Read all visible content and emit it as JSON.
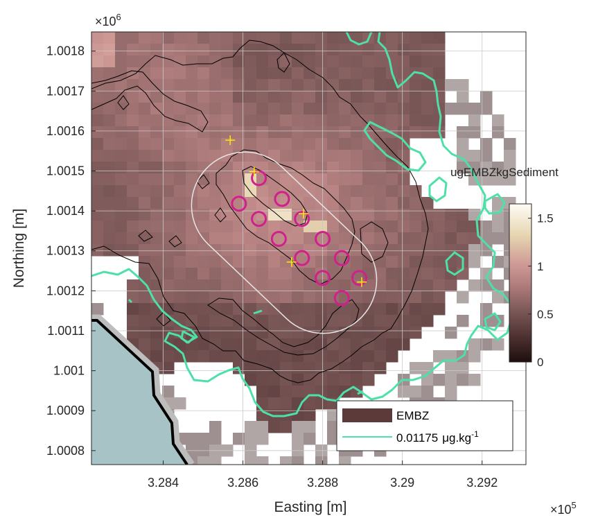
{
  "chart_data": {
    "type": "heatmap",
    "title": "",
    "xlabel": "Easting [m]",
    "ylabel": "Northing [m]",
    "x_exponent_label": "×10",
    "x_exponent_power": "5",
    "y_exponent_label": "×10",
    "y_exponent_power": "6",
    "xlim": [
      328220,
      329310
    ],
    "ylim": [
      1000745,
      1001828
    ],
    "x_ticks": [
      328400,
      328600,
      328800,
      329000,
      329200
    ],
    "x_tick_labels": [
      "3.284",
      "3.286",
      "3.288",
      "3.29",
      "3.292"
    ],
    "y_ticks": [
      1000780,
      1000880,
      1000980,
      1001080,
      1001180,
      1001280,
      1001380,
      1001480,
      1001580,
      1001680,
      1001780
    ],
    "y_tick_labels": [
      "1.0008",
      "1.0009",
      "1.001",
      "1.0011",
      "1.0012",
      "1.0013",
      "1.0014",
      "1.0015",
      "1.0016",
      "1.0017",
      "1.0018"
    ],
    "grid": true,
    "colorbar": {
      "title": "ugEMBZkgSediment",
      "range": [
        0,
        1.65
      ],
      "ticks": [
        0,
        0.5,
        1,
        1.5
      ],
      "tick_labels": [
        "0",
        "0.5",
        "1",
        "1.5"
      ]
    },
    "legend": {
      "placement": "bottom-right",
      "entries": [
        {
          "label": "EMBZ",
          "symbol": "patch",
          "color": "#5c3a3a"
        },
        {
          "label_main": "0.01175",
          "label_unit": "μg.kg",
          "label_exp": "-1",
          "symbol": "line",
          "color": "#4de0a8"
        }
      ]
    },
    "pens": [
      [
        328640,
        1001462
      ],
      [
        328698,
        1001410
      ],
      [
        328590,
        1001398
      ],
      [
        328640,
        1001360
      ],
      [
        328748,
        1001360
      ],
      [
        328690,
        1001310
      ],
      [
        328800,
        1001310
      ],
      [
        328748,
        1001262
      ],
      [
        328848,
        1001262
      ],
      [
        328800,
        1001212
      ],
      [
        328892,
        1001212
      ],
      [
        328848,
        1001162
      ]
    ],
    "release_points": [
      [
        328568,
        1001557
      ],
      [
        328628,
        1001478
      ],
      [
        328752,
        1001373
      ],
      [
        328722,
        1001252
      ],
      [
        328898,
        1001202
      ]
    ],
    "colors": {
      "pen_circle": "#d0208c",
      "release_cross": "#ffea00",
      "threshold_contour": "#4de0a8",
      "contour": "#000000",
      "aze_boundary": "#e6e6e6",
      "land": "#a7c3c6",
      "coastline": "#000000"
    }
  }
}
